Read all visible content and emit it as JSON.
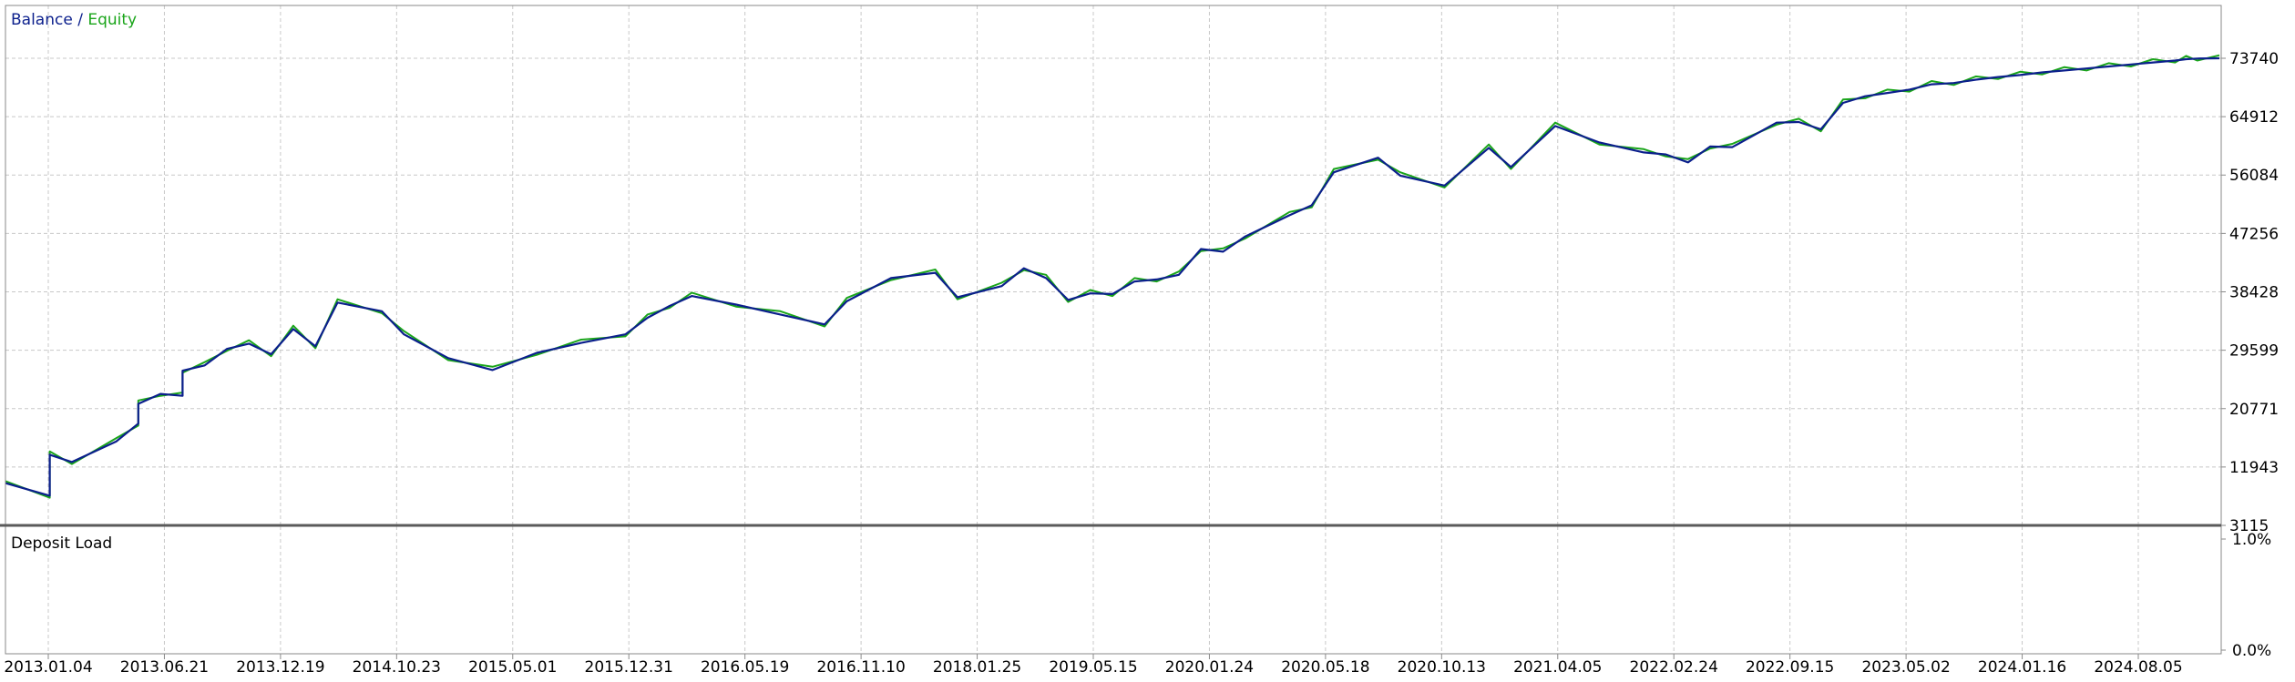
{
  "colors": {
    "balance": "#0b1f8c",
    "equity": "#1aa51a",
    "grid": "#c8c8c8",
    "frame": "#8a8a8a",
    "separator": "#5a5a5a",
    "text": "#000000"
  },
  "legend": {
    "balance": "Balance",
    "separator": " / ",
    "equity": "Equity"
  },
  "panels": {
    "main_label": "",
    "bottom_label": "Deposit Load"
  },
  "chart_data": [
    {
      "type": "line",
      "title": "",
      "ylim": [
        3115,
        78154
      ],
      "y_ticks": [
        "73740",
        "64912",
        "56084",
        "47256",
        "38428",
        "29599",
        "20771",
        "11943",
        "3115"
      ],
      "x_tick_labels": [
        "2013.01.04",
        "2013.06.21",
        "2013.12.19",
        "2014.10.23",
        "2015.05.01",
        "2015.12.31",
        "2016.05.19",
        "2016.11.10",
        "2018.01.25",
        "2019.05.15",
        "2020.01.24",
        "2020.05.18",
        "2020.10.13",
        "2021.04.05",
        "2022.02.24",
        "2022.09.15",
        "2023.05.02",
        "2024.01.16",
        "2024.08.05"
      ],
      "grid": true,
      "legend_position": "top-left",
      "series": [
        {
          "name": "Balance",
          "x": [
            0,
            0.02,
            0.02,
            0.03,
            0.05,
            0.06,
            0.06,
            0.07,
            0.08,
            0.08,
            0.09,
            0.1,
            0.11,
            0.12,
            0.13,
            0.14,
            0.15,
            0.17,
            0.18,
            0.2,
            0.22,
            0.24,
            0.26,
            0.28,
            0.29,
            0.3,
            0.31,
            0.33,
            0.35,
            0.37,
            0.38,
            0.4,
            0.42,
            0.43,
            0.45,
            0.46,
            0.47,
            0.48,
            0.49,
            0.5,
            0.51,
            0.52,
            0.53,
            0.54,
            0.55,
            0.56,
            0.58,
            0.59,
            0.6,
            0.62,
            0.63,
            0.65,
            0.67,
            0.68,
            0.7,
            0.72,
            0.74,
            0.75,
            0.76,
            0.77,
            0.78,
            0.8,
            0.81,
            0.82,
            0.83,
            0.84,
            0.85,
            0.86,
            0.87,
            0.88,
            0.89,
            0.9,
            0.91,
            0.92,
            0.93,
            0.94,
            0.95,
            0.96,
            0.97,
            0.98,
            0.985,
            0.99,
            1.0
          ],
          "y": [
            9500,
            7600,
            13800,
            12700,
            15800,
            18500,
            21500,
            23000,
            22700,
            26500,
            27300,
            29800,
            30600,
            29000,
            32800,
            30200,
            36800,
            35500,
            32000,
            28400,
            26600,
            29200,
            30700,
            32000,
            34500,
            36300,
            37800,
            36500,
            35000,
            33500,
            37000,
            40500,
            41300,
            37600,
            39300,
            42000,
            40500,
            37200,
            38200,
            38100,
            40000,
            40300,
            41000,
            44900,
            44500,
            46800,
            50000,
            51500,
            56500,
            58700,
            56000,
            54500,
            60200,
            57300,
            63500,
            61000,
            59500,
            59200,
            58000,
            60400,
            60300,
            64000,
            64100,
            63000,
            67000,
            68000,
            68500,
            69000,
            69800,
            70000,
            70500,
            70900,
            71200,
            71600,
            71900,
            72200,
            72500,
            72800,
            73100,
            73400,
            73600,
            73700,
            73740
          ]
        },
        {
          "name": "Equity",
          "x": [
            0,
            0.02,
            0.02,
            0.03,
            0.05,
            0.06,
            0.06,
            0.07,
            0.08,
            0.08,
            0.09,
            0.1,
            0.11,
            0.12,
            0.13,
            0.14,
            0.15,
            0.17,
            0.18,
            0.2,
            0.22,
            0.24,
            0.26,
            0.28,
            0.29,
            0.3,
            0.31,
            0.33,
            0.35,
            0.37,
            0.38,
            0.4,
            0.42,
            0.43,
            0.45,
            0.46,
            0.47,
            0.48,
            0.49,
            0.5,
            0.51,
            0.52,
            0.53,
            0.54,
            0.55,
            0.56,
            0.58,
            0.59,
            0.6,
            0.62,
            0.63,
            0.65,
            0.67,
            0.68,
            0.7,
            0.72,
            0.74,
            0.75,
            0.76,
            0.77,
            0.78,
            0.8,
            0.81,
            0.82,
            0.83,
            0.84,
            0.85,
            0.86,
            0.87,
            0.88,
            0.89,
            0.9,
            0.91,
            0.92,
            0.93,
            0.94,
            0.95,
            0.96,
            0.97,
            0.98,
            0.985,
            0.99,
            1.0
          ],
          "y": [
            9800,
            7300,
            14300,
            12400,
            16300,
            18200,
            22000,
            22700,
            23200,
            26200,
            27800,
            29500,
            31100,
            28700,
            33300,
            29900,
            37300,
            35200,
            32500,
            28100,
            27100,
            28900,
            31200,
            31700,
            35000,
            36000,
            38300,
            36200,
            35500,
            33200,
            37500,
            40200,
            41800,
            37300,
            39800,
            41700,
            41000,
            36900,
            38700,
            37800,
            40500,
            40000,
            41500,
            44600,
            45000,
            46500,
            50500,
            51200,
            57000,
            58400,
            56500,
            54200,
            60700,
            57000,
            64000,
            60700,
            60000,
            58900,
            58500,
            60100,
            60800,
            63700,
            64600,
            62700,
            67500,
            67700,
            69000,
            68700,
            70300,
            69700,
            71000,
            70600,
            71700,
            71300,
            72400,
            71900,
            73000,
            72500,
            73600,
            73100,
            74100,
            73400,
            74200
          ]
        }
      ]
    },
    {
      "type": "line",
      "title": "Deposit Load",
      "ylim": [
        0,
        1
      ],
      "y_ticks": [
        "1.0%",
        "0.0%"
      ],
      "grid": true,
      "series": []
    }
  ]
}
